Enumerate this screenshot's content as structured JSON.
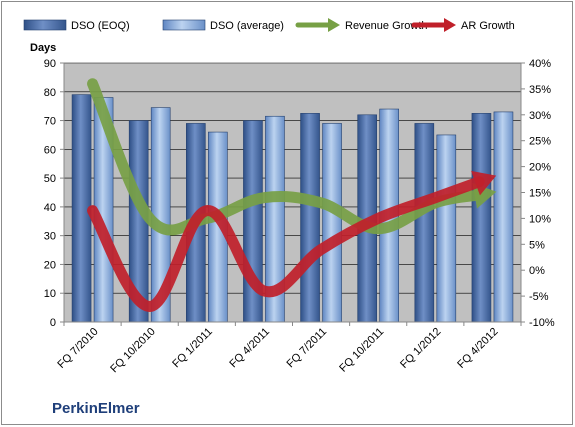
{
  "chart_data": {
    "type": "bar",
    "title": "",
    "company": "PerkinElmer",
    "ylabel": "Days",
    "ylim": [
      0,
      90
    ],
    "y_ticks": [
      "0",
      "10",
      "20",
      "30",
      "40",
      "50",
      "60",
      "70",
      "80",
      "90"
    ],
    "y2lim": [
      -10,
      40
    ],
    "y2_ticks": [
      "-10%",
      "-5%",
      "0%",
      "5%",
      "10%",
      "15%",
      "20%",
      "25%",
      "30%",
      "35%",
      "40%"
    ],
    "categories": [
      "FQ 7/2010",
      "FQ 10/2010",
      "FQ 1/2011",
      "FQ 4/2011",
      "FQ 7/2011",
      "FQ 10/2011",
      "FQ 1/2012",
      "FQ 4/2012"
    ],
    "series": [
      {
        "name": "DSO (EOQ)",
        "type": "bar",
        "axis": "left",
        "values": [
          79,
          70,
          69,
          70,
          72.5,
          72,
          69,
          72.5
        ],
        "color": "#4a6aa5"
      },
      {
        "name": "DSO (average)",
        "type": "bar",
        "axis": "left",
        "values": [
          78,
          74.5,
          66,
          71.5,
          69,
          74,
          65,
          73
        ],
        "color": "#8eb0e0"
      },
      {
        "name": "Revenue Growth",
        "type": "line",
        "axis": "right",
        "values": [
          36,
          10,
          10,
          14,
          13,
          8,
          13,
          15
        ],
        "color": "#77a045"
      },
      {
        "name": "AR Growth",
        "type": "line",
        "axis": "right",
        "values": [
          11.5,
          -7,
          11.5,
          -4,
          4,
          10,
          14,
          18
        ],
        "color": "#c0202a"
      }
    ],
    "legend_position": "top",
    "grid": true
  }
}
